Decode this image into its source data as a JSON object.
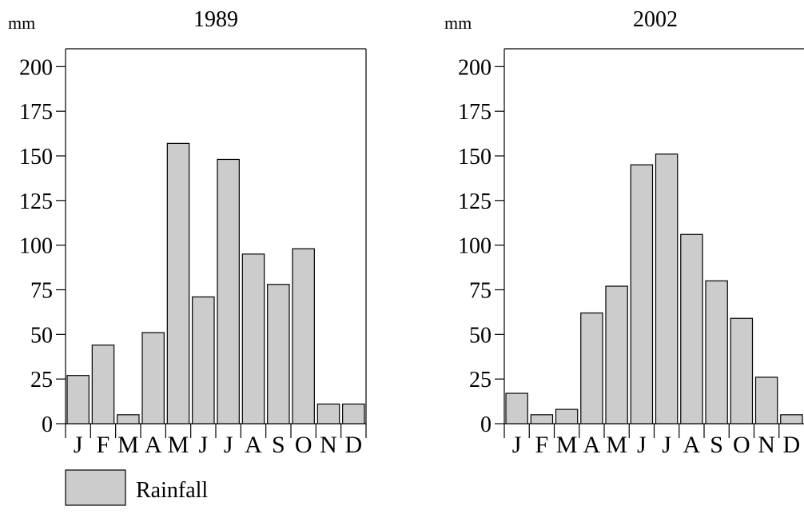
{
  "chart_data": [
    {
      "type": "bar",
      "title": "1989",
      "ylabel": "mm",
      "xlabel": "",
      "ylim": [
        0,
        210
      ],
      "yticks": [
        0,
        25,
        50,
        75,
        100,
        125,
        150,
        175,
        200
      ],
      "categories": [
        "J",
        "F",
        "M",
        "A",
        "M",
        "J",
        "J",
        "A",
        "S",
        "O",
        "N",
        "D"
      ],
      "series": [
        {
          "name": "Rainfall",
          "values": [
            27,
            44,
            5,
            51,
            157,
            71,
            148,
            95,
            78,
            98,
            11,
            11
          ]
        }
      ],
      "grid": false,
      "color": "#cccccc"
    },
    {
      "type": "bar",
      "title": "2002",
      "ylabel": "mm",
      "xlabel": "",
      "ylim": [
        0,
        210
      ],
      "yticks": [
        0,
        25,
        50,
        75,
        100,
        125,
        150,
        175,
        200
      ],
      "categories": [
        "J",
        "F",
        "M",
        "A",
        "M",
        "J",
        "J",
        "A",
        "S",
        "O",
        "N",
        "D"
      ],
      "series": [
        {
          "name": "Rainfall",
          "values": [
            17,
            5,
            8,
            62,
            77,
            145,
            151,
            106,
            80,
            59,
            26,
            5
          ]
        }
      ],
      "grid": false,
      "color": "#cccccc"
    }
  ],
  "legend": {
    "label": "Rainfall",
    "color": "#cccccc",
    "position": "bottom-left"
  }
}
